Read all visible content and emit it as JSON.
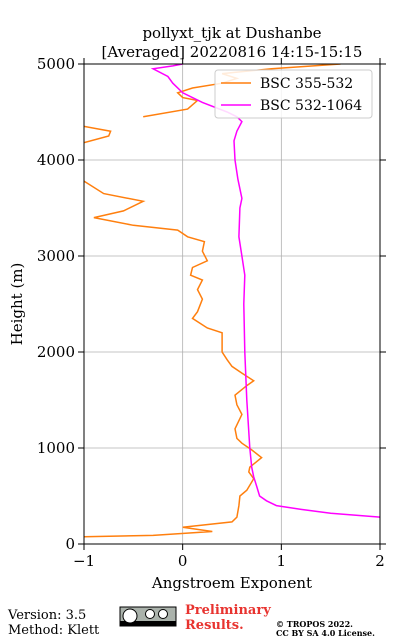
{
  "chart_data": {
    "type": "line",
    "title": "pollyxt_tjk at Dushanbe",
    "subtitle": "[Averaged] 20220816 14:15-15:15",
    "x_label": "Angstroem Exponent",
    "y_label": "Height (m)",
    "xlim": [
      -1,
      2
    ],
    "ylim": [
      0,
      5000
    ],
    "xticks": [
      {
        "value": -1,
        "label": "−1"
      },
      0,
      1,
      2
    ],
    "yticks": [
      0,
      1000,
      2000,
      3000,
      4000,
      5000
    ],
    "grid": true,
    "legend": "upper right",
    "series": [
      {
        "name": "BSC 355-532",
        "color": "#ff7f0e",
        "heights": [
          75,
          90,
          130,
          175,
          230,
          280,
          400,
          500,
          560,
          680,
          750,
          800,
          900,
          980,
          1050,
          1100,
          1200,
          1350,
          1450,
          1550,
          1650,
          1700,
          1780,
          1850,
          1920,
          2000,
          2100,
          2200,
          2250,
          2350,
          2420,
          2550,
          2650,
          2750,
          2800,
          2880,
          2950,
          3050,
          3150,
          3200,
          3270,
          3320,
          3400,
          3470,
          3570,
          3650,
          3780,
          4000,
          4180,
          4250,
          4300,
          4350,
          4400,
          4450,
          4530,
          4620,
          4650,
          4700,
          4750,
          4800,
          4850,
          4900,
          4950,
          5000
        ],
        "values": [
          -1.0,
          -0.3,
          0.3,
          0.0,
          0.5,
          0.55,
          0.57,
          0.58,
          0.65,
          0.72,
          0.67,
          0.68,
          0.8,
          0.7,
          0.6,
          0.55,
          0.53,
          0.6,
          0.55,
          0.53,
          0.65,
          0.72,
          0.6,
          0.5,
          0.45,
          0.4,
          0.4,
          0.4,
          0.25,
          0.1,
          0.15,
          0.2,
          0.15,
          0.2,
          0.08,
          0.1,
          0.25,
          0.2,
          0.22,
          0.05,
          -0.05,
          -0.5,
          -0.9,
          -0.6,
          -0.4,
          -0.8,
          -1.0,
          null,
          -1.0,
          -0.75,
          -0.73,
          -1.0,
          null,
          -0.4,
          0.05,
          0.15,
          0.0,
          -0.05,
          0.1,
          0.4,
          0.55,
          0.4,
          0.9,
          1.6
        ]
      },
      {
        "name": "BSC 532-1064",
        "color": "#ff00ff",
        "heights": [
          280,
          320,
          360,
          400,
          450,
          500,
          600,
          700,
          800,
          1000,
          1500,
          2000,
          2500,
          2800,
          3000,
          3200,
          3500,
          3600,
          3800,
          4000,
          4200,
          4300,
          4400,
          4450,
          4500,
          4600,
          4700,
          4800,
          4870,
          4950,
          4980,
          5000
        ],
        "values": [
          2.0,
          1.5,
          1.2,
          0.95,
          0.85,
          0.78,
          0.75,
          0.72,
          0.7,
          0.68,
          0.65,
          0.63,
          0.62,
          0.63,
          0.6,
          0.57,
          0.58,
          0.6,
          0.56,
          0.53,
          0.52,
          0.55,
          0.6,
          0.55,
          0.45,
          0.2,
          0.0,
          -0.1,
          -0.15,
          -0.3,
          -0.1,
          0.0
        ]
      }
    ]
  },
  "footer": {
    "version": "Version: 3.5",
    "method": "Method: Klett",
    "status": "Preliminary Results.",
    "copyright": "© TROPOS 2022.",
    "license": "CC BY SA 4.0 License."
  }
}
